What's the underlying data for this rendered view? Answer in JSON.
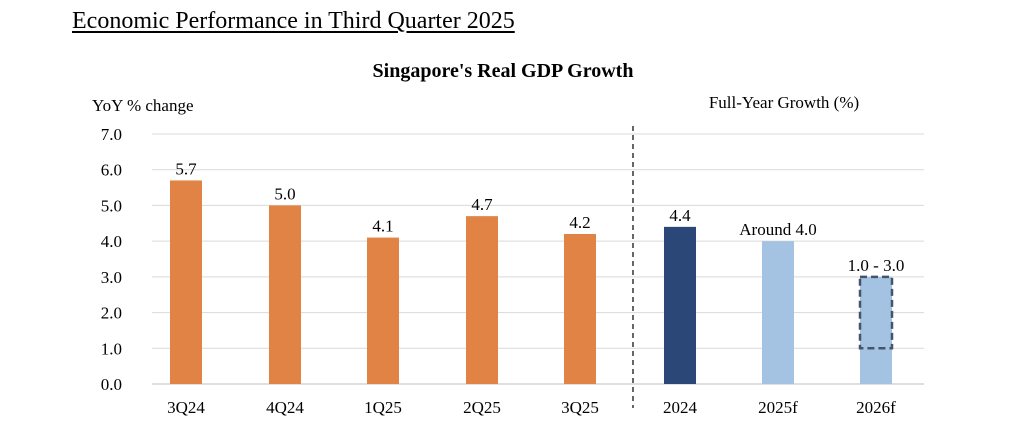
{
  "page_heading": "Economic Performance in Third Quarter 2025",
  "chart_data": {
    "type": "bar",
    "title": "Singapore's Real GDP Growth",
    "ylabel": "YoY % change",
    "right_panel_label": "Full-Year Growth (%)",
    "ylim": [
      0,
      7
    ],
    "yticks": [
      "0.0",
      "1.0",
      "2.0",
      "3.0",
      "4.0",
      "5.0",
      "6.0",
      "7.0"
    ],
    "grid": true,
    "categories": [
      "3Q24",
      "4Q24",
      "1Q25",
      "2Q25",
      "3Q25",
      "2024",
      "2025f",
      "2026f"
    ],
    "values": [
      5.7,
      5.0,
      4.1,
      4.7,
      4.2,
      4.4,
      4.0,
      3.0
    ],
    "data_labels": [
      "5.7",
      "5.0",
      "4.1",
      "4.7",
      "4.2",
      "4.4",
      "Around 4.0",
      "1.0 - 3.0"
    ],
    "forecast_range": {
      "category": "2026f",
      "low": 1.0,
      "high": 3.0
    },
    "colors": {
      "quarterly": "#E08344",
      "actual_annual": "#2A4778",
      "forecast": "#A4C3E3",
      "grid": "#D9D9D9",
      "range_border": "#44546A"
    }
  }
}
